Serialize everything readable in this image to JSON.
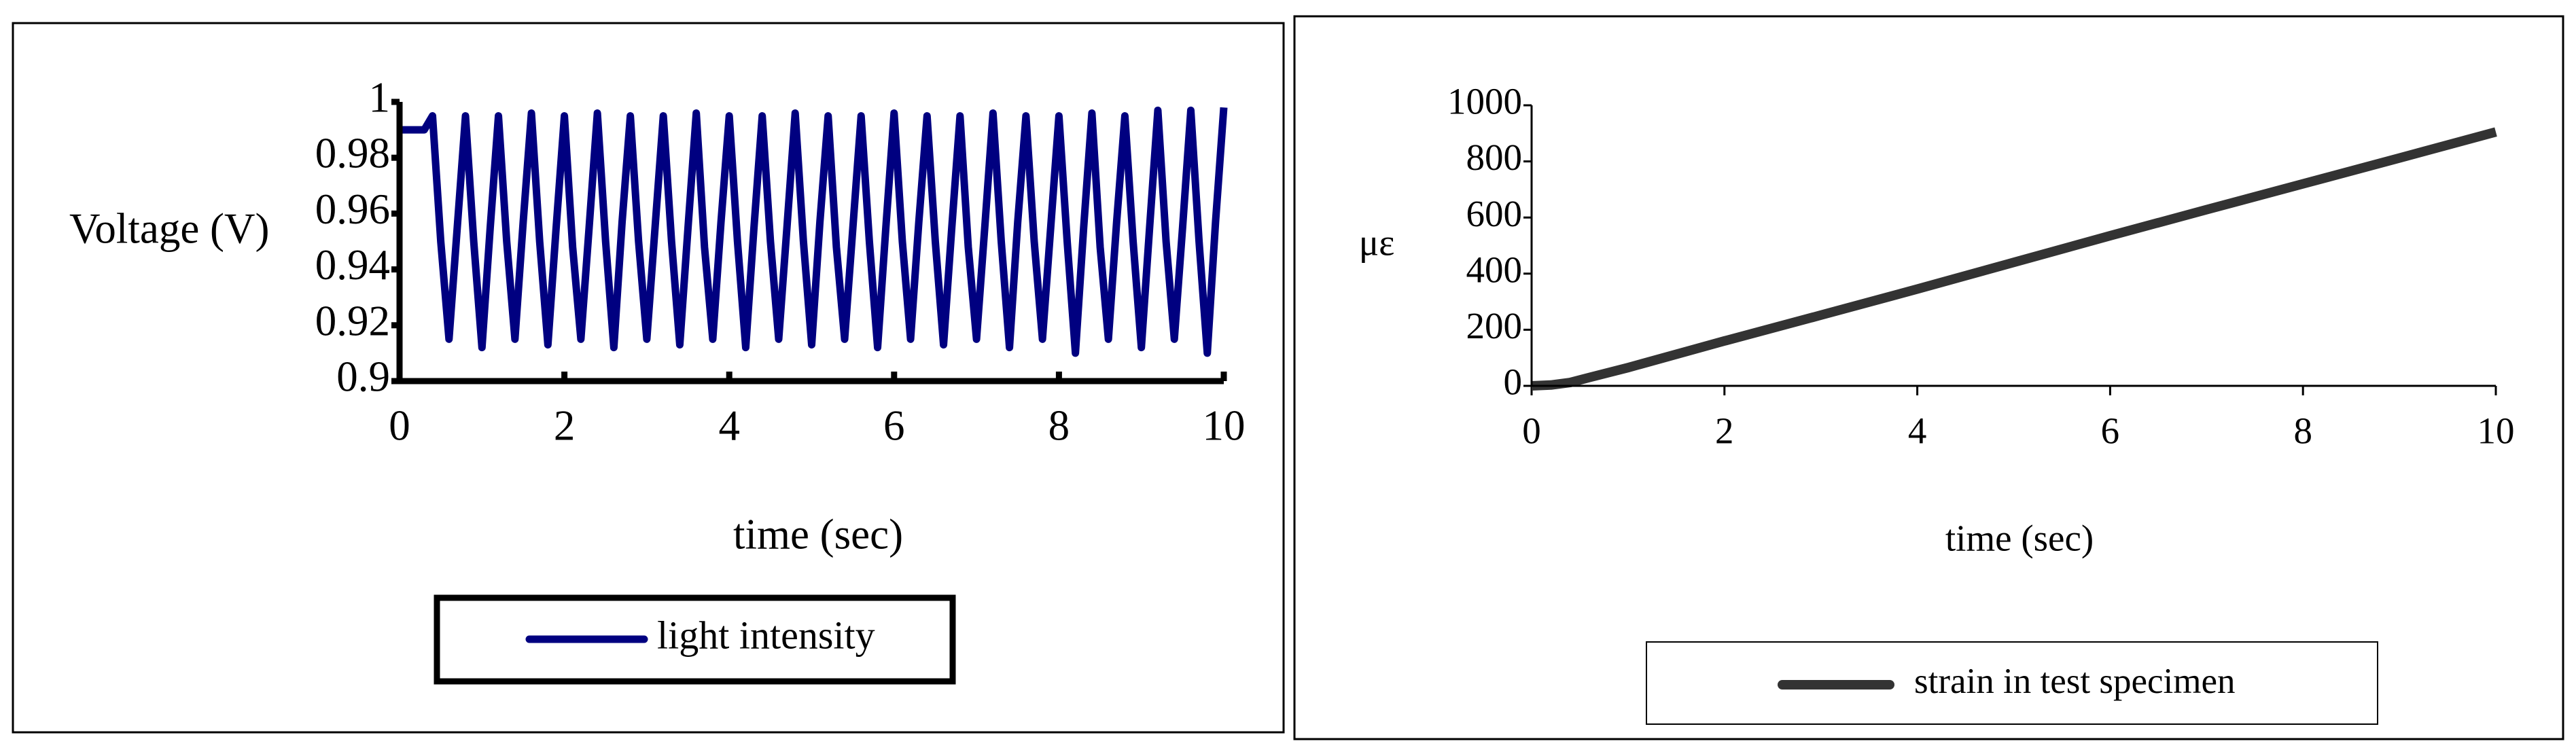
{
  "chart_data": [
    {
      "type": "line",
      "xlabel": "time (sec)",
      "ylabel": "Voltage (V)",
      "x": [
        0,
        0.1,
        0.2,
        0.3,
        0.4,
        0.5,
        0.6,
        0.7,
        0.8,
        0.9,
        1,
        1.1,
        1.2,
        1.3,
        1.4,
        1.5,
        1.6,
        1.7,
        1.8,
        1.9,
        2,
        2.1,
        2.2,
        2.3,
        2.4,
        2.5,
        2.6,
        2.7,
        2.8,
        2.9,
        3,
        3.1,
        3.2,
        3.3,
        3.4,
        3.5,
        3.6,
        3.7,
        3.8,
        3.9,
        4,
        4.1,
        4.2,
        4.3,
        4.4,
        4.5,
        4.6,
        4.7,
        4.8,
        4.9,
        5,
        5.1,
        5.2,
        5.3,
        5.4,
        5.5,
        5.6,
        5.7,
        5.8,
        5.9,
        6,
        6.1,
        6.2,
        6.3,
        6.4,
        6.5,
        6.6,
        6.7,
        6.8,
        6.9,
        7,
        7.1,
        7.2,
        7.3,
        7.4,
        7.5,
        7.6,
        7.7,
        7.8,
        7.9,
        8,
        8.1,
        8.2,
        8.3,
        8.4,
        8.5,
        8.6,
        8.7,
        8.8,
        8.9,
        9,
        9.1,
        9.2,
        9.3,
        9.4,
        9.5,
        9.6,
        9.7,
        9.8,
        9.9,
        10
      ],
      "series": [
        {
          "name": "light intensity",
          "color": "#000080",
          "values": [
            0.99,
            0.99,
            0.99,
            0.99,
            0.995,
            0.95,
            0.915,
            0.955,
            0.995,
            0.95,
            0.912,
            0.955,
            0.995,
            0.95,
            0.915,
            0.957,
            0.996,
            0.95,
            0.913,
            0.955,
            0.995,
            0.948,
            0.915,
            0.955,
            0.996,
            0.95,
            0.912,
            0.957,
            0.995,
            0.95,
            0.915,
            0.955,
            0.995,
            0.95,
            0.913,
            0.955,
            0.996,
            0.948,
            0.915,
            0.957,
            0.995,
            0.95,
            0.912,
            0.955,
            0.995,
            0.95,
            0.915,
            0.955,
            0.996,
            0.95,
            0.913,
            0.957,
            0.995,
            0.948,
            0.915,
            0.955,
            0.995,
            0.95,
            0.912,
            0.955,
            0.996,
            0.95,
            0.915,
            0.957,
            0.995,
            0.95,
            0.913,
            0.955,
            0.995,
            0.948,
            0.915,
            0.955,
            0.996,
            0.95,
            0.912,
            0.957,
            0.995,
            0.95,
            0.915,
            0.955,
            0.995,
            0.95,
            0.91,
            0.955,
            0.996,
            0.948,
            0.915,
            0.957,
            0.995,
            0.95,
            0.912,
            0.955,
            0.997,
            0.95,
            0.915,
            0.955,
            0.997,
            0.95,
            0.91,
            0.957,
            0.998
          ]
        }
      ],
      "xlim": [
        0,
        10
      ],
      "ylim": [
        0.9,
        1
      ],
      "xticks": [
        0,
        2,
        4,
        6,
        8,
        10
      ],
      "yticks": [
        0.9,
        0.92,
        0.94,
        0.96,
        0.98,
        1
      ]
    },
    {
      "type": "line",
      "xlabel": "time (sec)",
      "ylabel": "με",
      "x": [
        0,
        0.2,
        0.4,
        0.6,
        1,
        2,
        3,
        4,
        5,
        6,
        7,
        8,
        9,
        10
      ],
      "series": [
        {
          "name": "strain in test specimen",
          "color": "#333333",
          "values": [
            0,
            3,
            12,
            30,
            65,
            160,
            252,
            345,
            440,
            535,
            628,
            720,
            812,
            905
          ]
        }
      ],
      "xlim": [
        0,
        10
      ],
      "ylim": [
        0,
        1000
      ],
      "xticks": [
        0,
        2,
        4,
        6,
        8,
        10
      ],
      "yticks": [
        0,
        200,
        400,
        600,
        800,
        1000
      ]
    }
  ]
}
